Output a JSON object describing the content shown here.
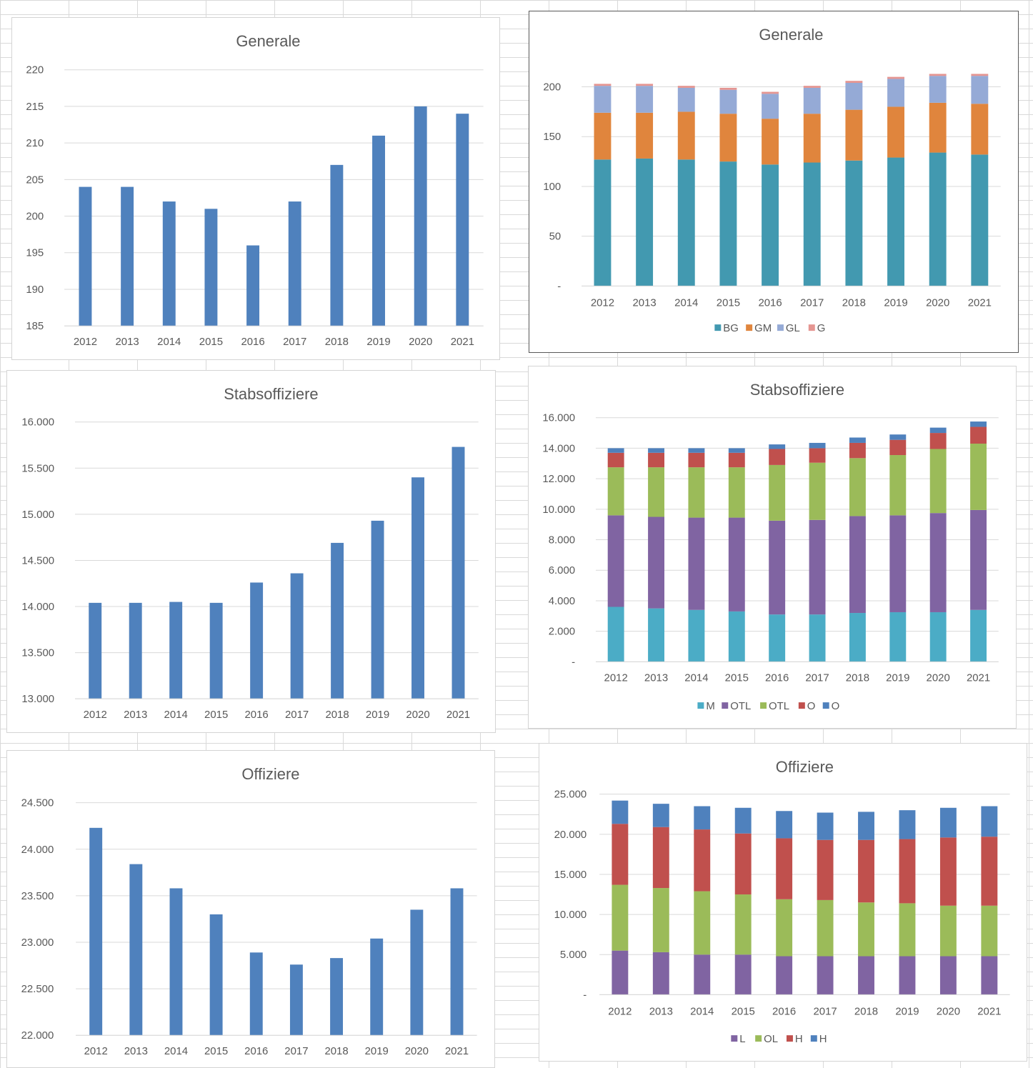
{
  "chart_data": [
    {
      "type": "bar",
      "title": "Generale",
      "categories": [
        "2012",
        "2013",
        "2014",
        "2015",
        "2016",
        "2017",
        "2018",
        "2019",
        "2020",
        "2021"
      ],
      "values": [
        204,
        204,
        202,
        201,
        196,
        202,
        207,
        211,
        215,
        214
      ],
      "ylim": [
        185,
        220
      ],
      "yticks": [
        185,
        190,
        195,
        200,
        205,
        210,
        215,
        220
      ],
      "ytick_labels": [
        "185",
        "190",
        "195",
        "200",
        "205",
        "210",
        "215",
        "220"
      ],
      "grid": true,
      "legend": "none",
      "colors": [
        "#4f81bd"
      ]
    },
    {
      "type": "bar",
      "stacked": true,
      "title": "Generale",
      "categories": [
        "2012",
        "2013",
        "2014",
        "2015",
        "2016",
        "2017",
        "2018",
        "2019",
        "2020",
        "2021"
      ],
      "series": [
        {
          "name": "BG",
          "values": [
            127,
            128,
            127,
            125,
            122,
            124,
            126,
            129,
            134,
            132
          ]
        },
        {
          "name": "GM",
          "values": [
            47,
            46,
            48,
            48,
            46,
            49,
            51,
            51,
            50,
            51
          ]
        },
        {
          "name": "GL",
          "values": [
            27,
            27,
            24,
            24,
            25,
            26,
            27,
            28,
            27,
            28
          ]
        },
        {
          "name": "G",
          "values": [
            2,
            2,
            2,
            2,
            2,
            2,
            2,
            2,
            2,
            2
          ]
        }
      ],
      "ylim": [
        0,
        215
      ],
      "yticks": [
        0,
        50,
        100,
        150,
        200
      ],
      "ytick_labels": [
        "-",
        "50",
        "100",
        "150",
        "200"
      ],
      "grid": true,
      "legend": "bottom",
      "colors": [
        "#4299b0",
        "#e0853d",
        "#95aad6",
        "#e59591"
      ]
    },
    {
      "type": "bar",
      "title": "Stabsoffiziere",
      "categories": [
        "2012",
        "2013",
        "2014",
        "2015",
        "2016",
        "2017",
        "2018",
        "2019",
        "2020",
        "2021"
      ],
      "values": [
        14040,
        14040,
        14050,
        14040,
        14260,
        14360,
        14690,
        14930,
        15400,
        15730
      ],
      "ylim": [
        13000,
        16000
      ],
      "yticks": [
        13000,
        13500,
        14000,
        14500,
        15000,
        15500,
        16000
      ],
      "ytick_labels": [
        "13.000",
        "13.500",
        "14.000",
        "14.500",
        "15.000",
        "15.500",
        "16.000"
      ],
      "grid": true,
      "legend": "none",
      "colors": [
        "#4f81bd"
      ]
    },
    {
      "type": "bar",
      "stacked": true,
      "title": "Stabsoffiziere",
      "categories": [
        "2012",
        "2013",
        "2014",
        "2015",
        "2016",
        "2017",
        "2018",
        "2019",
        "2020",
        "2021"
      ],
      "series": [
        {
          "name": "M",
          "values": [
            3600,
            3500,
            3400,
            3300,
            3100,
            3100,
            3200,
            3250,
            3250,
            3400
          ]
        },
        {
          "name": "OTL",
          "values": [
            6000,
            6000,
            6050,
            6150,
            6150,
            6200,
            6350,
            6350,
            6500,
            6550
          ]
        },
        {
          "name": "OTL",
          "values": [
            3150,
            3250,
            3300,
            3300,
            3650,
            3750,
            3800,
            3950,
            4200,
            4350
          ]
        },
        {
          "name": "O",
          "values": [
            950,
            950,
            950,
            950,
            1050,
            950,
            1000,
            1000,
            1050,
            1100
          ]
        },
        {
          "name": "O",
          "values": [
            300,
            300,
            300,
            300,
            300,
            350,
            350,
            350,
            350,
            350
          ]
        }
      ],
      "ylim": [
        0,
        16000
      ],
      "yticks": [
        0,
        2000,
        4000,
        6000,
        8000,
        10000,
        12000,
        14000,
        16000
      ],
      "ytick_labels": [
        "-",
        "2.000",
        "4.000",
        "6.000",
        "8.000",
        "10.000",
        "12.000",
        "14.000",
        "16.000"
      ],
      "grid": true,
      "legend": "bottom",
      "colors": [
        "#4bacc6",
        "#8064a2",
        "#9bbb59",
        "#c0504d",
        "#4f81bd"
      ]
    },
    {
      "type": "bar",
      "title": "Offiziere",
      "categories": [
        "2012",
        "2013",
        "2014",
        "2015",
        "2016",
        "2017",
        "2018",
        "2019",
        "2020",
        "2021"
      ],
      "values": [
        24230,
        23840,
        23580,
        23300,
        22890,
        22760,
        22830,
        23040,
        23350,
        23580
      ],
      "ylim": [
        22000,
        24500
      ],
      "yticks": [
        22000,
        22500,
        23000,
        23500,
        24000,
        24500
      ],
      "ytick_labels": [
        "22.000",
        "22.500",
        "23.000",
        "23.500",
        "24.000",
        "24.500"
      ],
      "grid": true,
      "legend": "none",
      "colors": [
        "#4f81bd"
      ]
    },
    {
      "type": "bar",
      "stacked": true,
      "title": "Offiziere",
      "categories": [
        "2012",
        "2013",
        "2014",
        "2015",
        "2016",
        "2017",
        "2018",
        "2019",
        "2020",
        "2021"
      ],
      "series": [
        {
          "name": "L",
          "values": [
            5500,
            5300,
            5000,
            5000,
            4800,
            4800,
            4800,
            4800,
            4800,
            4800
          ]
        },
        {
          "name": "OL",
          "values": [
            8200,
            8000,
            7900,
            7500,
            7100,
            7000,
            6700,
            6600,
            6300,
            6300
          ]
        },
        {
          "name": "H",
          "values": [
            7600,
            7600,
            7700,
            7600,
            7600,
            7500,
            7800,
            8000,
            8500,
            8600
          ]
        },
        {
          "name": "H",
          "values": [
            2900,
            2900,
            2900,
            3200,
            3400,
            3400,
            3500,
            3600,
            3700,
            3800
          ]
        }
      ],
      "ylim": [
        0,
        25000
      ],
      "yticks": [
        0,
        5000,
        10000,
        15000,
        20000,
        25000
      ],
      "ytick_labels": [
        "-",
        "5.000",
        "10.000",
        "15.000",
        "20.000",
        "25.000"
      ],
      "grid": true,
      "legend": "bottom",
      "colors": [
        "#8064a2",
        "#9bbb59",
        "#c0504d",
        "#4f81bd"
      ]
    }
  ]
}
